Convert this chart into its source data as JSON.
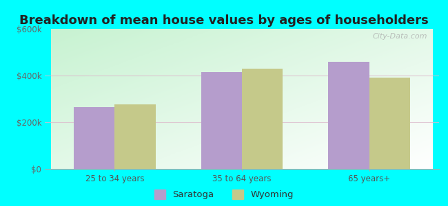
{
  "title": "Breakdown of mean house values by ages of householders",
  "categories": [
    "25 to 34 years",
    "35 to 64 years",
    "65 years+"
  ],
  "saratoga_values": [
    265000,
    415000,
    460000
  ],
  "wyoming_values": [
    275000,
    430000,
    390000
  ],
  "saratoga_color": "#b59dcc",
  "wyoming_color": "#c5c98a",
  "ylim": [
    0,
    600000
  ],
  "yticks": [
    0,
    200000,
    400000,
    600000
  ],
  "ytick_labels": [
    "$0",
    "$200k",
    "$400k",
    "$600k"
  ],
  "background_color": "#00ffff",
  "title_fontsize": 13,
  "legend_labels": [
    "Saratoga",
    "Wyoming"
  ],
  "bar_width": 0.32,
  "watermark": "City-Data.com",
  "grid_color": "#ddeecc",
  "grid_alpha": 0.9
}
